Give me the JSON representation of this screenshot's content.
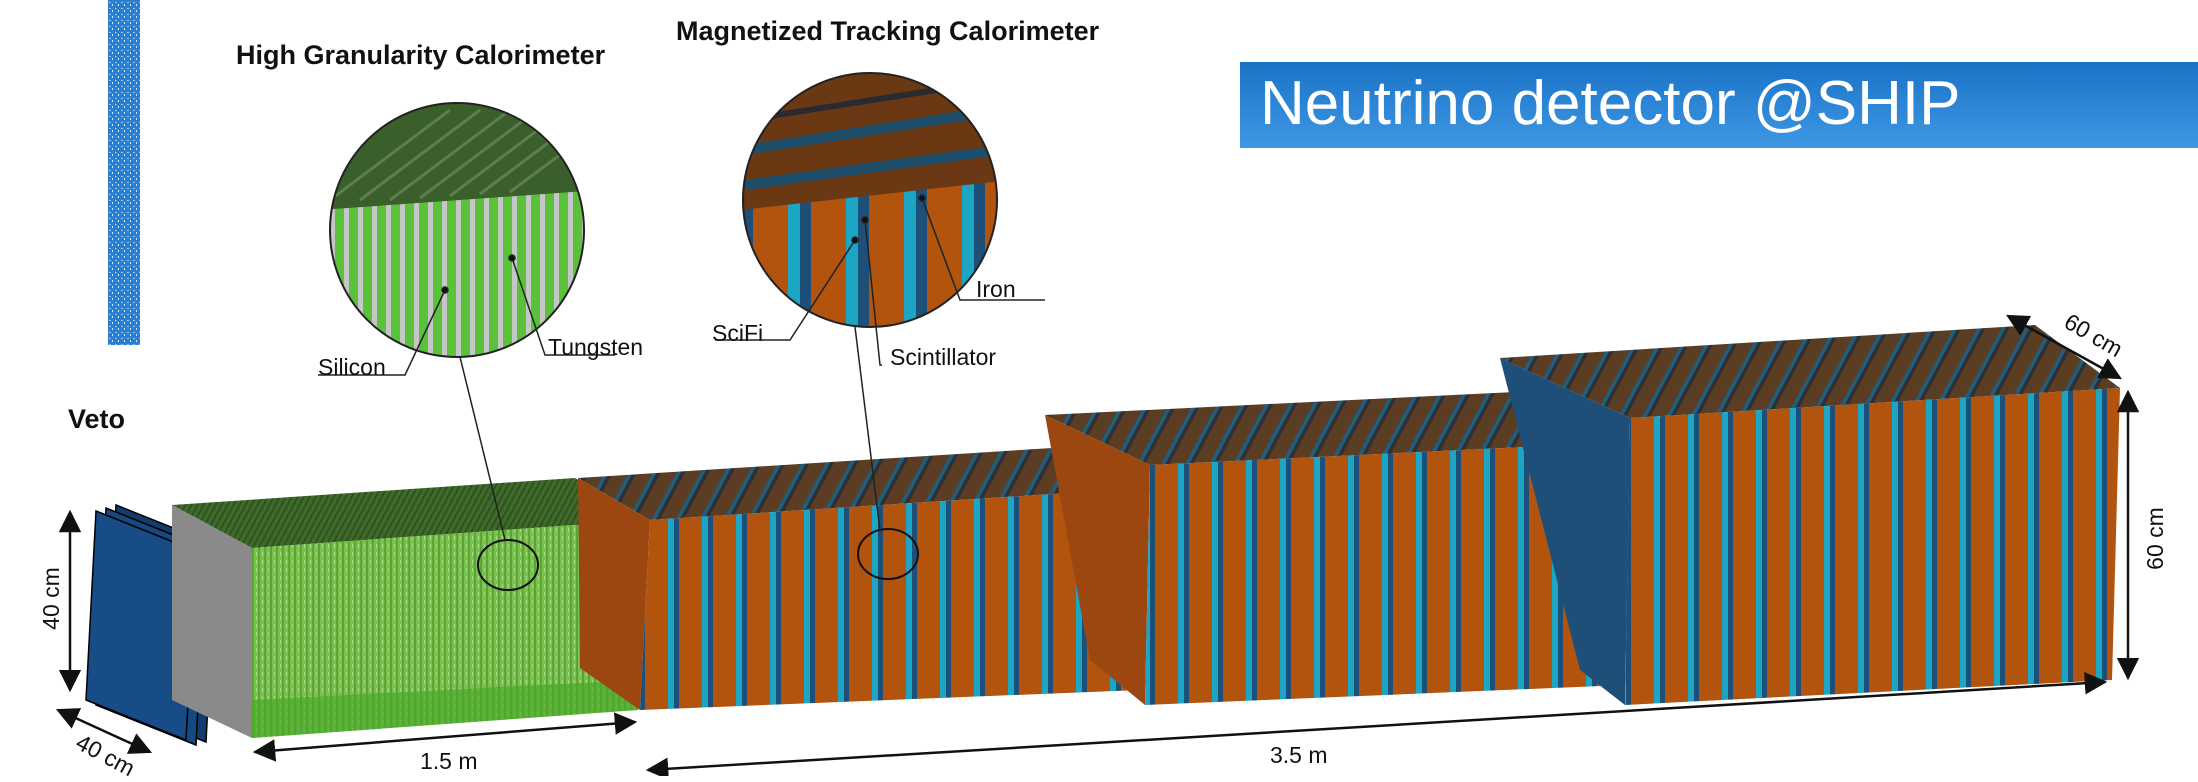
{
  "title": "Neutrino detector @SHIP",
  "sections": {
    "hgc": "High Granularity Calorimeter",
    "mtc": "Magnetized Tracking Calorimeter",
    "veto": "Veto"
  },
  "materials": {
    "silicon": "Silicon",
    "tungsten": "Tungsten",
    "scifi": "SciFi",
    "scintillator": "Scintillator",
    "iron": "Iron"
  },
  "dimensions": {
    "veto_height": "40 cm",
    "veto_width": "40 cm",
    "hgc_length": "1.5 m",
    "mtc_length": "3.5 m",
    "mtc_height": "60 cm",
    "mtc_width": "60 cm"
  },
  "colors": {
    "banner": "#2a86d6",
    "silicon": "#66b43a",
    "tungsten": "#b9b9b9",
    "iron": "#b2530e",
    "scifi": "#1ca6c4",
    "scintillator": "#1d4f78",
    "veto": "#184c87"
  }
}
